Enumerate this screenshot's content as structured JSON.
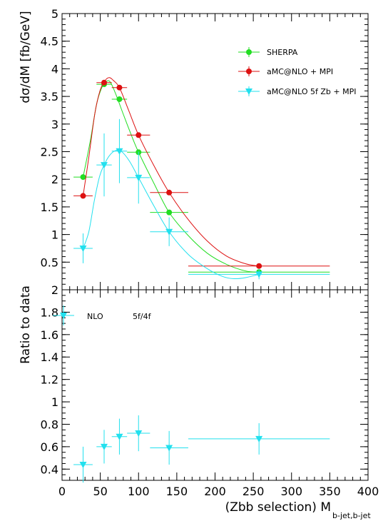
{
  "chart_data": [
    {
      "type": "scatter",
      "ylabel": "dσ/dM [fb/GeV]",
      "xlim": [
        0,
        400
      ],
      "ylim": [
        0,
        5
      ],
      "yticks": [
        0.5,
        1,
        1.5,
        2,
        2.5,
        3,
        3.5,
        4,
        4.5,
        5
      ],
      "series": [
        {
          "name": "SHERPA",
          "color": "#22dd22",
          "marker": "circle",
          "points": [
            {
              "x": 27.5,
              "y": 2.04,
              "xerr": 12.5,
              "yerr": 0.03
            },
            {
              "x": 55,
              "y": 3.72,
              "xerr": 10,
              "yerr": 0.04
            },
            {
              "x": 75,
              "y": 3.45,
              "xerr": 10,
              "yerr": 0.03
            },
            {
              "x": 100,
              "y": 2.49,
              "xerr": 15,
              "yerr": 0.03
            },
            {
              "x": 140,
              "y": 1.4,
              "xerr": 25,
              "yerr": 0.02
            },
            {
              "x": 257.5,
              "y": 0.32,
              "xerr": 92.5,
              "yerr": 0.01
            }
          ],
          "curve": [
            [
              27.5,
              2.04
            ],
            [
              37,
              2.7
            ],
            [
              45,
              3.35
            ],
            [
              52,
              3.66
            ],
            [
              58,
              3.77
            ],
            [
              63,
              3.76
            ],
            [
              70,
              3.55
            ],
            [
              80,
              3.18
            ],
            [
              90,
              2.82
            ],
            [
              100,
              2.49
            ],
            [
              120,
              1.93
            ],
            [
              140,
              1.4
            ],
            [
              165,
              0.98
            ],
            [
              190,
              0.66
            ],
            [
              215,
              0.46
            ],
            [
              240,
              0.34
            ],
            [
              257.5,
              0.32
            ]
          ]
        },
        {
          "name": "aMC@NLO + MPI",
          "color": "#dd1111",
          "marker": "circle",
          "points": [
            {
              "x": 27.5,
              "y": 1.7,
              "xerr": 12.5,
              "yerr": 0.03
            },
            {
              "x": 55,
              "y": 3.75,
              "xerr": 10,
              "yerr": 0.04
            },
            {
              "x": 75,
              "y": 3.66,
              "xerr": 10,
              "yerr": 0.03
            },
            {
              "x": 100,
              "y": 2.8,
              "xerr": 15,
              "yerr": 0.03
            },
            {
              "x": 140,
              "y": 1.76,
              "xerr": 25,
              "yerr": 0.02
            },
            {
              "x": 257.5,
              "y": 0.43,
              "xerr": 92.5,
              "yerr": 0.01
            }
          ],
          "curve": [
            [
              27.5,
              1.7
            ],
            [
              35,
              2.4
            ],
            [
              43,
              3.2
            ],
            [
              50,
              3.62
            ],
            [
              57,
              3.8
            ],
            [
              62,
              3.84
            ],
            [
              67,
              3.79
            ],
            [
              75,
              3.66
            ],
            [
              87,
              3.25
            ],
            [
              100,
              2.8
            ],
            [
              120,
              2.25
            ],
            [
              140,
              1.76
            ],
            [
              165,
              1.27
            ],
            [
              190,
              0.88
            ],
            [
              215,
              0.61
            ],
            [
              240,
              0.47
            ],
            [
              257.5,
              0.43
            ]
          ]
        },
        {
          "name": "aMC@NLO 5f Zb + MPI",
          "color": "#22e0ee",
          "marker": "triangle-down",
          "points": [
            {
              "x": 27.5,
              "y": 0.75,
              "xerr": 12.5,
              "yerr": 0.27
            },
            {
              "x": 55,
              "y": 2.26,
              "xerr": 10,
              "yerr": 0.57
            },
            {
              "x": 75,
              "y": 2.51,
              "xerr": 10,
              "yerr": 0.58
            },
            {
              "x": 100,
              "y": 2.03,
              "xerr": 15,
              "yerr": 0.47
            },
            {
              "x": 140,
              "y": 1.05,
              "xerr": 25,
              "yerr": 0.26
            },
            {
              "x": 257.5,
              "y": 0.28,
              "xerr": 92.5,
              "yerr": 0.09
            }
          ],
          "curve": [
            [
              27.5,
              0.75
            ],
            [
              35,
              1.05
            ],
            [
              42,
              1.6
            ],
            [
              49,
              2.05
            ],
            [
              55,
              2.26
            ],
            [
              62,
              2.43
            ],
            [
              70,
              2.52
            ],
            [
              78,
              2.5
            ],
            [
              88,
              2.33
            ],
            [
              100,
              2.03
            ],
            [
              120,
              1.52
            ],
            [
              140,
              1.05
            ],
            [
              165,
              0.64
            ],
            [
              190,
              0.38
            ],
            [
              210,
              0.24
            ],
            [
              225,
              0.2
            ],
            [
              240,
              0.22
            ],
            [
              257.5,
              0.28
            ]
          ]
        }
      ]
    },
    {
      "type": "scatter",
      "ylabel": "Ratio to data",
      "xlabel": "(Zbb selection) M",
      "xlabel_sub": "b-jet,b-jet",
      "xlim": [
        0,
        400
      ],
      "ylim": [
        0.3,
        2.0
      ],
      "xticks": [
        0,
        50,
        100,
        150,
        200,
        250,
        300,
        350,
        400
      ],
      "yticks": [
        0.4,
        0.6,
        0.8,
        1,
        1.2,
        1.4,
        1.6,
        1.8,
        2
      ],
      "legend_text": "NLO",
      "legend_extra": "5f/4f",
      "series": [
        {
          "name": "NLO",
          "color": "#22e0ee",
          "marker": "triangle-down",
          "points": [
            {
              "x": 27.5,
              "y": 0.44,
              "xerr": 12.5,
              "yerr": 0.16
            },
            {
              "x": 55,
              "y": 0.6,
              "xerr": 10,
              "yerr": 0.15
            },
            {
              "x": 75,
              "y": 0.69,
              "xerr": 10,
              "yerr": 0.16
            },
            {
              "x": 100,
              "y": 0.72,
              "xerr": 15,
              "yerr": 0.16
            },
            {
              "x": 140,
              "y": 0.59,
              "xerr": 25,
              "yerr": 0.15
            },
            {
              "x": 257.5,
              "y": 0.67,
              "xerr": 92.5,
              "yerr": 0.14
            }
          ]
        }
      ]
    }
  ]
}
